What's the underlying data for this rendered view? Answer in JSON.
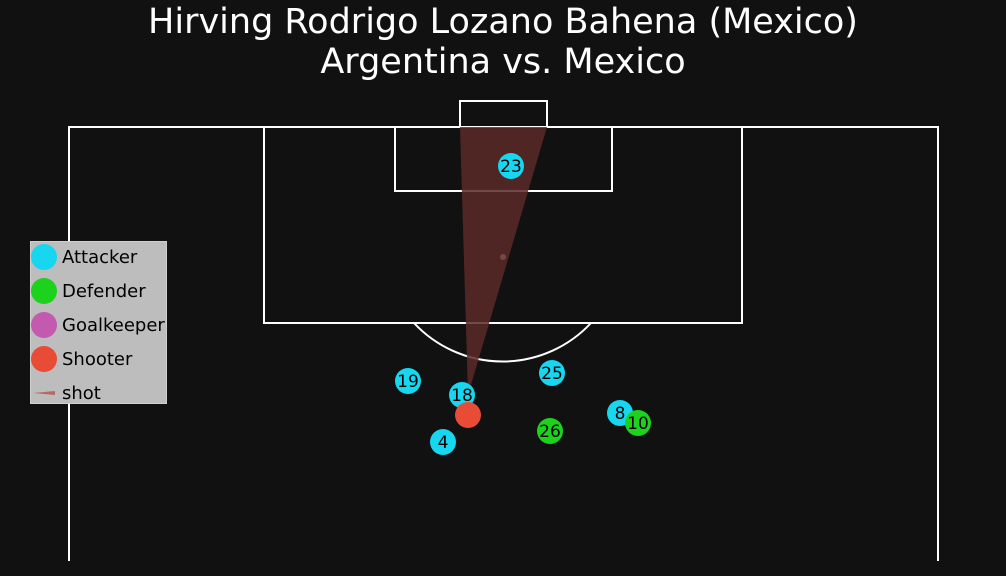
{
  "title": {
    "line1": "Hirving Rodrigo Lozano Bahena (Mexico)",
    "line2": "Argentina vs. Mexico"
  },
  "colors": {
    "background": "#111111",
    "pitch_lines": "#ffffff",
    "attacker": "#16d6f0",
    "defender": "#1dd21d",
    "goalkeeper": "#c459b0",
    "shooter": "#e84c36",
    "shot_cone": "#5a2a28"
  },
  "legend": {
    "items": [
      {
        "label": "Attacker",
        "role": "attacker"
      },
      {
        "label": "Defender",
        "role": "defender"
      },
      {
        "label": "Goalkeeper",
        "role": "goalkeeper"
      },
      {
        "label": "Shooter",
        "role": "shooter"
      },
      {
        "label": "shot",
        "role": "shot"
      }
    ]
  },
  "players": [
    {
      "number": "23",
      "role": "attacker"
    },
    {
      "number": "19",
      "role": "attacker"
    },
    {
      "number": "18",
      "role": "attacker"
    },
    {
      "number": "25",
      "role": "attacker"
    },
    {
      "number": "4",
      "role": "attacker"
    },
    {
      "number": "8",
      "role": "attacker"
    },
    {
      "number": "26",
      "role": "defender"
    },
    {
      "number": "10",
      "role": "defender"
    }
  ],
  "shooter": {
    "role": "shooter"
  }
}
